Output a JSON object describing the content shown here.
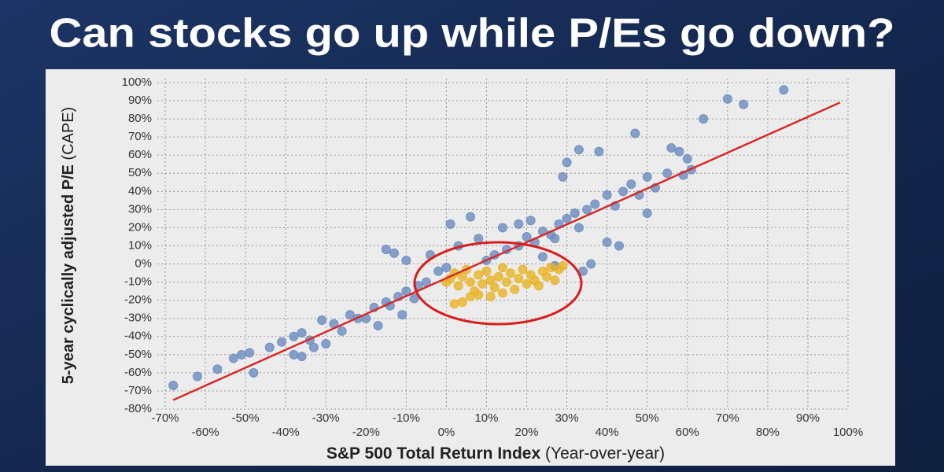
{
  "chart_data": {
    "type": "scatter",
    "title": "Can stocks go up while P/Es go down?",
    "xlabel": "S&P 500 Total Return Index",
    "xlabel_note": "(Year-over-year)",
    "ylabel": "5-year cyclically adjusted P/E",
    "ylabel_note": "(CAPE)",
    "xlim": [
      -70,
      100
    ],
    "ylim": [
      -80,
      100
    ],
    "grid": true,
    "xticks": [
      {
        "value": -70,
        "label": "-70%"
      },
      {
        "value": -60,
        "label": "-60%"
      },
      {
        "value": -50,
        "label": "-50%"
      },
      {
        "value": -40,
        "label": "-40%"
      },
      {
        "value": -30,
        "label": "-30%"
      },
      {
        "value": -20,
        "label": "-20%"
      },
      {
        "value": -10,
        "label": "-10%"
      },
      {
        "value": 0,
        "label": "0%"
      },
      {
        "value": 10,
        "label": "10%"
      },
      {
        "value": 20,
        "label": "20%"
      },
      {
        "value": 30,
        "label": "30%"
      },
      {
        "value": 40,
        "label": "40%"
      },
      {
        "value": 50,
        "label": "50%"
      },
      {
        "value": 60,
        "label": "60%"
      },
      {
        "value": 70,
        "label": "70%"
      },
      {
        "value": 80,
        "label": "80%"
      },
      {
        "value": 90,
        "label": "90%"
      },
      {
        "value": 100,
        "label": "100%"
      }
    ],
    "yticks": [
      {
        "value": 100,
        "label": "100%"
      },
      {
        "value": 90,
        "label": "90%"
      },
      {
        "value": 80,
        "label": "80%"
      },
      {
        "value": 70,
        "label": "70%"
      },
      {
        "value": 60,
        "label": "60%"
      },
      {
        "value": 50,
        "label": "50%"
      },
      {
        "value": 40,
        "label": "40%"
      },
      {
        "value": 30,
        "label": "30%"
      },
      {
        "value": 20,
        "label": "20%"
      },
      {
        "value": 10,
        "label": "10%"
      },
      {
        "value": 0,
        "label": "0%"
      },
      {
        "value": -10,
        "label": "-10%"
      },
      {
        "value": -20,
        "label": "-20%"
      },
      {
        "value": -30,
        "label": "-30%"
      },
      {
        "value": -40,
        "label": "-40%"
      },
      {
        "value": -50,
        "label": "-50%"
      },
      {
        "value": -60,
        "label": "-60%"
      },
      {
        "value": -70,
        "label": "-70%"
      },
      {
        "value": -80,
        "label": "-80%"
      }
    ],
    "trend_line": {
      "x": [
        -68,
        98
      ],
      "y": [
        -75,
        89
      ],
      "color": "#d62b2b"
    },
    "series": [
      {
        "color": "#6b8cc0",
        "x": [
          -68,
          -62,
          -57,
          -53,
          -51,
          -49,
          -48,
          -44,
          -41,
          -38,
          -36,
          -34,
          -33,
          -30,
          -36,
          -38,
          -31,
          -28,
          -26,
          -24,
          -22,
          -20,
          -18,
          -17,
          -15,
          -14,
          -12,
          -11,
          -10,
          -8,
          -7,
          -5,
          -13,
          -10,
          -4,
          -2,
          0,
          3,
          6,
          1,
          10,
          12,
          15,
          18,
          20,
          22,
          24,
          26,
          27,
          28,
          30,
          32,
          33,
          35,
          37,
          40,
          42,
          44,
          46,
          48,
          50,
          52,
          55,
          58,
          60,
          64,
          70,
          74,
          84,
          30,
          33,
          38,
          29,
          24,
          27,
          34,
          36,
          47,
          56,
          59,
          61,
          -15,
          50,
          40,
          43,
          8,
          14,
          18,
          21
        ],
        "values": [
          -67,
          -62,
          -58,
          -52,
          -50,
          -49,
          -60,
          -46,
          -43,
          -40,
          -38,
          -42,
          -46,
          -44,
          -51,
          -50,
          -31,
          -33,
          -37,
          -28,
          -30,
          -30,
          -24,
          -34,
          -21,
          -23,
          -18,
          -28,
          -15,
          -19,
          -12,
          -10,
          6,
          2,
          5,
          -4,
          -2,
          10,
          26,
          22,
          2,
          5,
          8,
          10,
          15,
          12,
          18,
          16,
          14,
          22,
          25,
          28,
          20,
          30,
          33,
          38,
          32,
          40,
          44,
          38,
          48,
          42,
          50,
          62,
          58,
          80,
          91,
          88,
          96,
          56,
          63,
          62,
          48,
          4,
          -1,
          -4,
          0,
          72,
          64,
          49,
          52,
          8,
          28,
          12,
          10,
          14,
          20,
          22,
          24
        ]
      },
      {
        "color": "#e9b425",
        "x": [
          0,
          1,
          2,
          3,
          4,
          5,
          6,
          7,
          8,
          9,
          10,
          11,
          12,
          13,
          14,
          15,
          16,
          17,
          18,
          19,
          20,
          21,
          22,
          23,
          24,
          25,
          26,
          27,
          28,
          29,
          2,
          4,
          8,
          11,
          14,
          6
        ],
        "values": [
          -10,
          -8,
          -5,
          -12,
          -7,
          -3,
          -10,
          -15,
          -6,
          -11,
          -4,
          -9,
          -13,
          -7,
          -2,
          -10,
          -5,
          -14,
          -8,
          -3,
          -11,
          -6,
          -9,
          -12,
          -4,
          -7,
          -2,
          -9,
          -3,
          -1,
          -22,
          -21,
          -17,
          -18,
          -16,
          -18
        ]
      }
    ]
  }
}
